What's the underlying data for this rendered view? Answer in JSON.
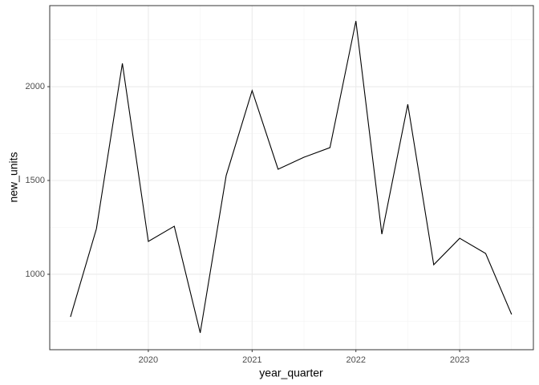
{
  "chart_data": {
    "type": "line",
    "x_label": "year_quarter",
    "y_label": "new_units",
    "x": [
      2019.25,
      2019.5,
      2019.75,
      2020,
      2020.25,
      2020.5,
      2020.75,
      2021,
      2021.25,
      2021.5,
      2021.75,
      2022,
      2022.25,
      2022.5,
      2022.75,
      2023,
      2023.25,
      2023.5
    ],
    "series": [
      {
        "color": "#000000",
        "values": [
          773,
          1243,
          2124,
          1175,
          1256,
          688,
          1526,
          1979,
          1560,
          1624,
          1675,
          2350,
          1214,
          1906,
          1051,
          1192,
          1111,
          786
        ]
      }
    ],
    "xlim": [
      2019.05,
      2023.71
    ],
    "xticks": [
      2020,
      2021,
      2022,
      2023
    ],
    "ylim": [
      598,
      2432
    ],
    "yticks": [
      1000,
      1500,
      2000
    ],
    "grid": true
  }
}
